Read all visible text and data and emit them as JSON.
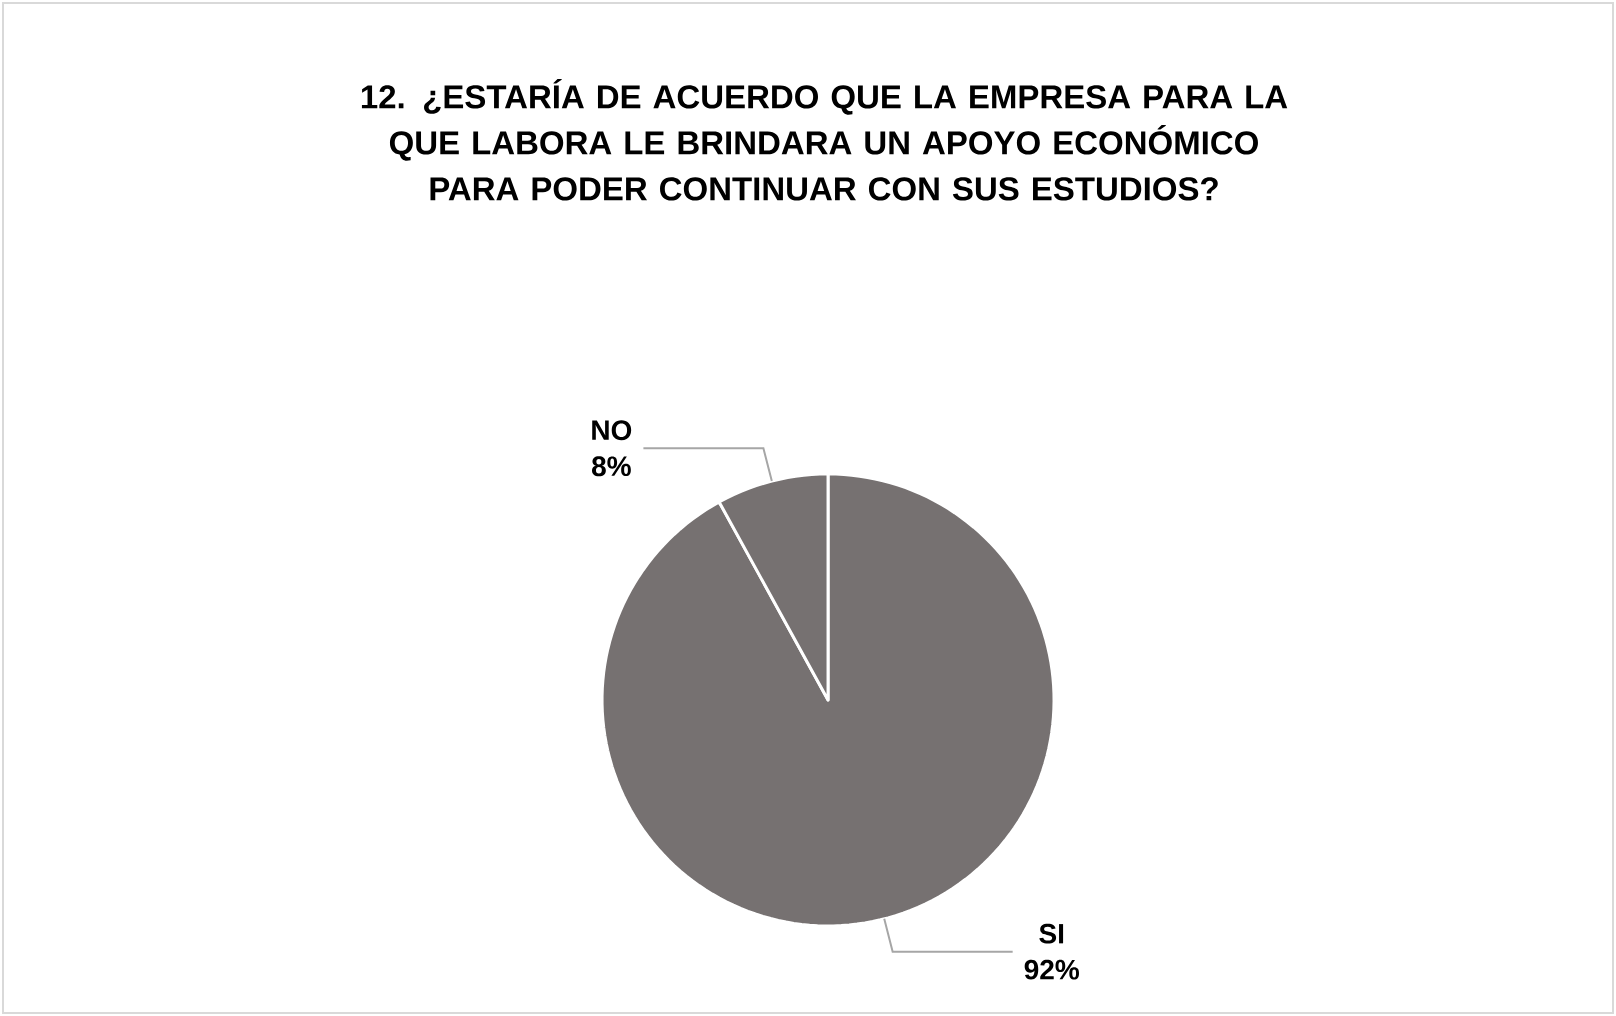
{
  "chart_data": {
    "type": "pie",
    "title": "12. ¿ESTARÍA DE ACUERDO QUE LA EMPRESA PARA LA QUE LABORA LE BRINDARA UN APOYO ECONÓMICO PARA PODER CONTINUAR CON SUS ESTUDIOS?",
    "categories": [
      "SI",
      "NO"
    ],
    "values": [
      92,
      8
    ],
    "colors": [
      "#767171",
      "#767171"
    ],
    "value_labels": [
      "92%",
      "8%"
    ],
    "legend": false
  }
}
